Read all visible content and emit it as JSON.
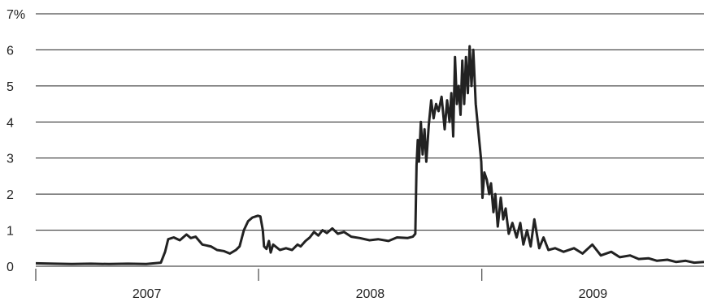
{
  "chart_data": {
    "type": "line",
    "title": "",
    "xlabel": "",
    "ylabel": "",
    "ylim": [
      0,
      7
    ],
    "grid": true,
    "y_ticks": [
      {
        "value": 0,
        "label": "0"
      },
      {
        "value": 1,
        "label": "1"
      },
      {
        "value": 2,
        "label": "2"
      },
      {
        "value": 3,
        "label": "3"
      },
      {
        "value": 4,
        "label": "4"
      },
      {
        "value": 5,
        "label": "5"
      },
      {
        "value": 6,
        "label": "6"
      },
      {
        "value": 7,
        "label": "7%"
      }
    ],
    "xlim": [
      "2007-01-01",
      "2009-12-31"
    ],
    "x_tick_dates": [
      "2007-01-01",
      "2008-01-01",
      "2009-01-01"
    ],
    "x_category_labels": [
      {
        "label": "2007",
        "at": "2007-07-02"
      },
      {
        "label": "2008",
        "at": "2008-07-02"
      },
      {
        "label": "2009",
        "at": "2009-07-02"
      }
    ],
    "series": [
      {
        "color": "#222222",
        "points": [
          [
            "2007-01-01",
            0.08
          ],
          [
            "2007-02-01",
            0.07
          ],
          [
            "2007-03-01",
            0.06
          ],
          [
            "2007-04-01",
            0.07
          ],
          [
            "2007-05-01",
            0.06
          ],
          [
            "2007-06-01",
            0.07
          ],
          [
            "2007-07-01",
            0.06
          ],
          [
            "2007-07-25",
            0.1
          ],
          [
            "2007-08-01",
            0.4
          ],
          [
            "2007-08-06",
            0.75
          ],
          [
            "2007-08-15",
            0.8
          ],
          [
            "2007-08-25",
            0.72
          ],
          [
            "2007-09-05",
            0.88
          ],
          [
            "2007-09-12",
            0.78
          ],
          [
            "2007-09-20",
            0.82
          ],
          [
            "2007-10-01",
            0.6
          ],
          [
            "2007-10-15",
            0.55
          ],
          [
            "2007-10-25",
            0.45
          ],
          [
            "2007-11-05",
            0.42
          ],
          [
            "2007-11-15",
            0.35
          ],
          [
            "2007-11-25",
            0.45
          ],
          [
            "2007-12-01",
            0.55
          ],
          [
            "2007-12-08",
            1.0
          ],
          [
            "2007-12-15",
            1.25
          ],
          [
            "2007-12-22",
            1.35
          ],
          [
            "2007-12-31",
            1.4
          ],
          [
            "2008-01-04",
            1.38
          ],
          [
            "2008-01-08",
            1.0
          ],
          [
            "2008-01-10",
            0.55
          ],
          [
            "2008-01-14",
            0.48
          ],
          [
            "2008-01-18",
            0.7
          ],
          [
            "2008-01-21",
            0.38
          ],
          [
            "2008-01-25",
            0.6
          ],
          [
            "2008-02-05",
            0.45
          ],
          [
            "2008-02-15",
            0.5
          ],
          [
            "2008-02-25",
            0.45
          ],
          [
            "2008-03-05",
            0.6
          ],
          [
            "2008-03-10",
            0.55
          ],
          [
            "2008-03-18",
            0.7
          ],
          [
            "2008-03-25",
            0.8
          ],
          [
            "2008-04-01",
            0.95
          ],
          [
            "2008-04-08",
            0.85
          ],
          [
            "2008-04-15",
            1.0
          ],
          [
            "2008-04-22",
            0.92
          ],
          [
            "2008-05-01",
            1.05
          ],
          [
            "2008-05-10",
            0.9
          ],
          [
            "2008-05-20",
            0.95
          ],
          [
            "2008-06-01",
            0.82
          ],
          [
            "2008-06-15",
            0.78
          ],
          [
            "2008-07-01",
            0.72
          ],
          [
            "2008-07-15",
            0.75
          ],
          [
            "2008-08-01",
            0.7
          ],
          [
            "2008-08-15",
            0.8
          ],
          [
            "2008-09-01",
            0.78
          ],
          [
            "2008-09-10",
            0.82
          ],
          [
            "2008-09-14",
            0.9
          ],
          [
            "2008-09-16",
            2.8
          ],
          [
            "2008-09-18",
            3.5
          ],
          [
            "2008-09-20",
            2.9
          ],
          [
            "2008-09-23",
            4.0
          ],
          [
            "2008-09-26",
            3.1
          ],
          [
            "2008-09-29",
            3.8
          ],
          [
            "2008-10-02",
            2.9
          ],
          [
            "2008-10-06",
            3.9
          ],
          [
            "2008-10-10",
            4.6
          ],
          [
            "2008-10-14",
            4.1
          ],
          [
            "2008-10-18",
            4.5
          ],
          [
            "2008-10-22",
            4.3
          ],
          [
            "2008-10-27",
            4.7
          ],
          [
            "2008-11-01",
            3.8
          ],
          [
            "2008-11-05",
            4.6
          ],
          [
            "2008-11-09",
            4.0
          ],
          [
            "2008-11-12",
            4.8
          ],
          [
            "2008-11-15",
            3.6
          ],
          [
            "2008-11-18",
            5.8
          ],
          [
            "2008-11-21",
            4.5
          ],
          [
            "2008-11-24",
            5.0
          ],
          [
            "2008-11-27",
            4.2
          ],
          [
            "2008-11-30",
            5.7
          ],
          [
            "2008-12-03",
            4.5
          ],
          [
            "2008-12-06",
            5.8
          ],
          [
            "2008-12-09",
            4.8
          ],
          [
            "2008-12-12",
            6.1
          ],
          [
            "2008-12-15",
            5.0
          ],
          [
            "2008-12-18",
            6.0
          ],
          [
            "2008-12-22",
            4.5
          ],
          [
            "2008-12-26",
            3.8
          ],
          [
            "2008-12-31",
            2.9
          ],
          [
            "2009-01-02",
            1.9
          ],
          [
            "2009-01-05",
            2.6
          ],
          [
            "2009-01-09",
            2.4
          ],
          [
            "2009-01-13",
            2.0
          ],
          [
            "2009-01-16",
            2.3
          ],
          [
            "2009-01-20",
            1.5
          ],
          [
            "2009-01-23",
            2.0
          ],
          [
            "2009-01-27",
            1.1
          ],
          [
            "2009-02-01",
            1.9
          ],
          [
            "2009-02-05",
            1.3
          ],
          [
            "2009-02-09",
            1.6
          ],
          [
            "2009-02-14",
            0.9
          ],
          [
            "2009-02-20",
            1.2
          ],
          [
            "2009-02-27",
            0.8
          ],
          [
            "2009-03-05",
            1.2
          ],
          [
            "2009-03-10",
            0.6
          ],
          [
            "2009-03-16",
            1.0
          ],
          [
            "2009-03-22",
            0.55
          ],
          [
            "2009-03-28",
            1.3
          ],
          [
            "2009-04-05",
            0.5
          ],
          [
            "2009-04-12",
            0.8
          ],
          [
            "2009-04-20",
            0.45
          ],
          [
            "2009-05-01",
            0.5
          ],
          [
            "2009-05-15",
            0.4
          ],
          [
            "2009-06-01",
            0.5
          ],
          [
            "2009-06-15",
            0.35
          ],
          [
            "2009-07-01",
            0.6
          ],
          [
            "2009-07-15",
            0.3
          ],
          [
            "2009-08-01",
            0.4
          ],
          [
            "2009-08-15",
            0.25
          ],
          [
            "2009-09-01",
            0.3
          ],
          [
            "2009-09-15",
            0.2
          ],
          [
            "2009-10-01",
            0.22
          ],
          [
            "2009-10-15",
            0.15
          ],
          [
            "2009-11-01",
            0.18
          ],
          [
            "2009-11-15",
            0.12
          ],
          [
            "2009-12-01",
            0.15
          ],
          [
            "2009-12-15",
            0.1
          ],
          [
            "2009-12-31",
            0.12
          ]
        ]
      }
    ]
  }
}
